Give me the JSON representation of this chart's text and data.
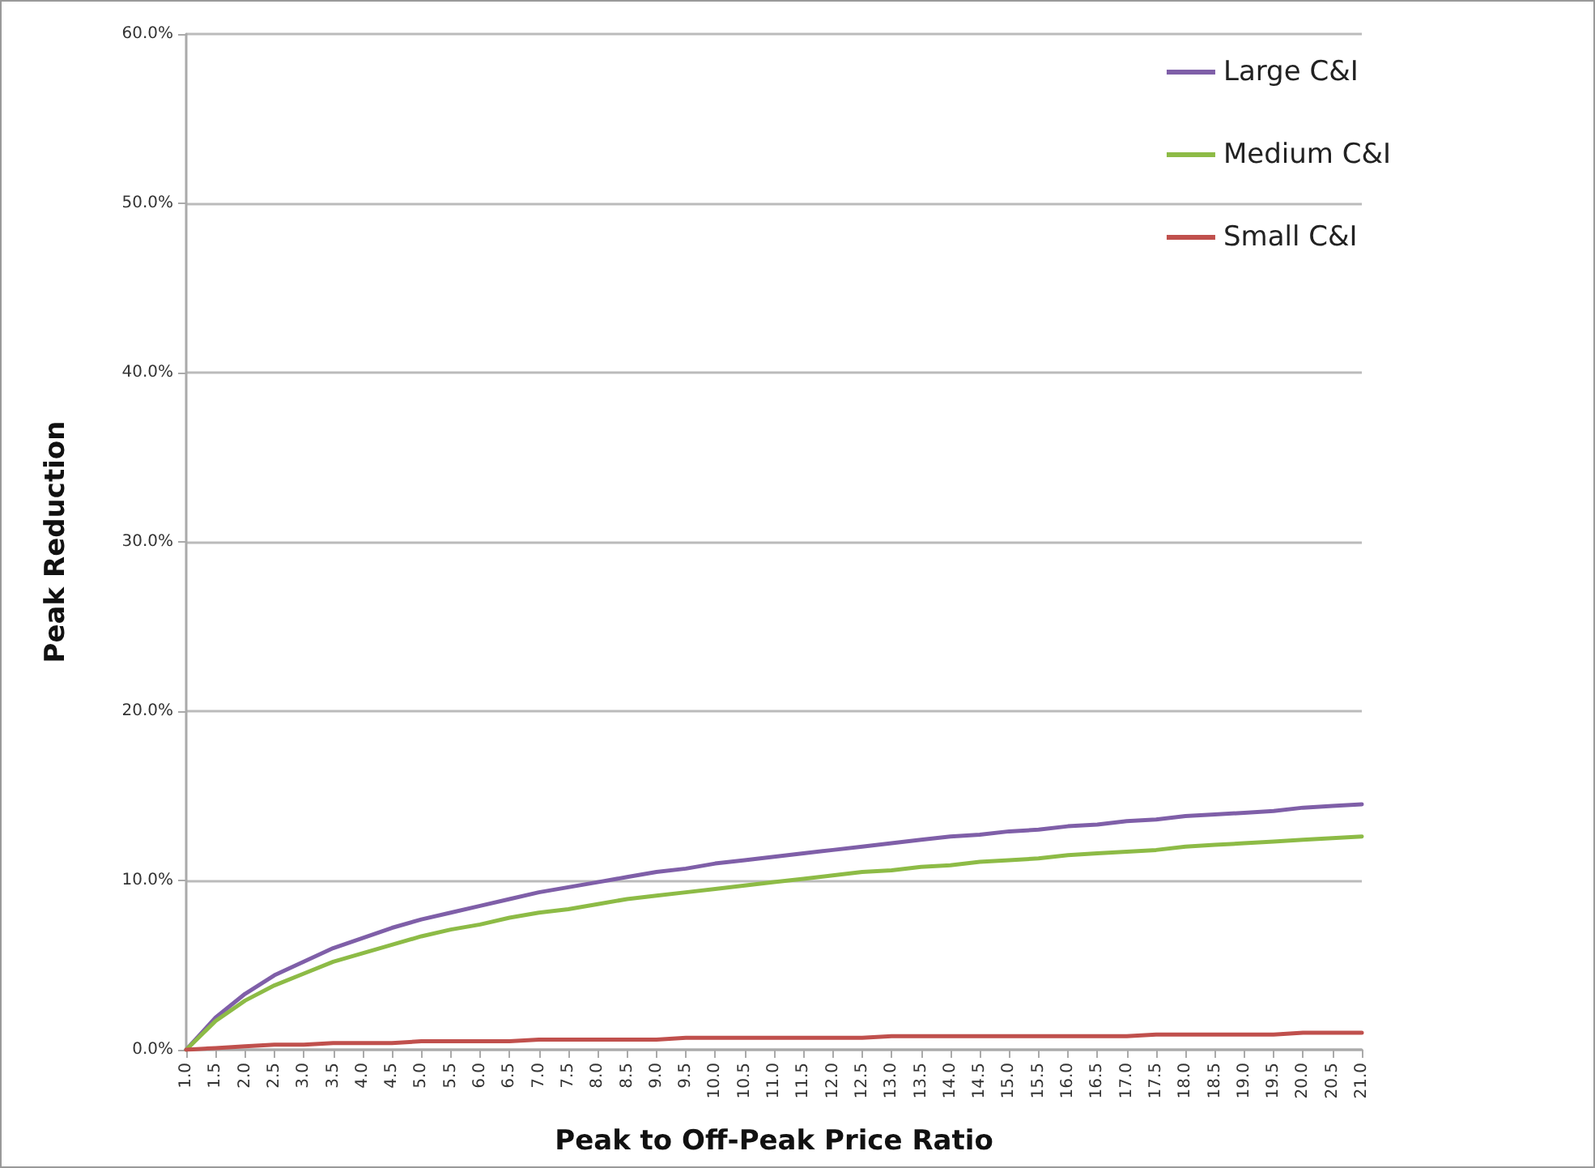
{
  "chart_data": {
    "type": "line",
    "xlabel": "Peak to Off-Peak Price Ratio",
    "ylabel": "Peak Reduction",
    "categories": [
      "1.0",
      "1.5",
      "2.0",
      "2.5",
      "3.0",
      "3.5",
      "4.0",
      "4.5",
      "5.0",
      "5.5",
      "6.0",
      "6.5",
      "7.0",
      "7.5",
      "8.0",
      "8.5",
      "9.0",
      "9.5",
      "10.0",
      "10.5",
      "11.0",
      "11.5",
      "12.0",
      "12.5",
      "13.0",
      "13.5",
      "14.0",
      "14.5",
      "15.0",
      "15.5",
      "16.0",
      "16.5",
      "17.0",
      "17.5",
      "18.0",
      "18.5",
      "19.0",
      "19.5",
      "20.0",
      "20.5",
      "21.0"
    ],
    "series": [
      {
        "name": "Large C&I",
        "color": "#7f5fa8",
        "values": [
          0,
          1.9,
          3.3,
          4.4,
          5.2,
          6.0,
          6.6,
          7.2,
          7.7,
          8.1,
          8.5,
          8.9,
          9.3,
          9.6,
          9.9,
          10.2,
          10.5,
          10.7,
          11.0,
          11.2,
          11.4,
          11.6,
          11.8,
          12.0,
          12.2,
          12.4,
          12.6,
          12.7,
          12.9,
          13.0,
          13.2,
          13.3,
          13.5,
          13.6,
          13.8,
          13.9,
          14.0,
          14.1,
          14.3,
          14.4,
          14.5
        ]
      },
      {
        "name": "Medium C&I",
        "color": "#8dbb46",
        "values": [
          0,
          1.7,
          2.9,
          3.8,
          4.5,
          5.2,
          5.7,
          6.2,
          6.7,
          7.1,
          7.4,
          7.8,
          8.1,
          8.3,
          8.6,
          8.9,
          9.1,
          9.3,
          9.5,
          9.7,
          9.9,
          10.1,
          10.3,
          10.5,
          10.6,
          10.8,
          10.9,
          11.1,
          11.2,
          11.3,
          11.5,
          11.6,
          11.7,
          11.8,
          12.0,
          12.1,
          12.2,
          12.3,
          12.4,
          12.5,
          12.6
        ]
      },
      {
        "name": "Small C&I",
        "color": "#c0504d",
        "values": [
          0,
          0.1,
          0.2,
          0.3,
          0.3,
          0.4,
          0.4,
          0.4,
          0.5,
          0.5,
          0.5,
          0.5,
          0.6,
          0.6,
          0.6,
          0.6,
          0.6,
          0.7,
          0.7,
          0.7,
          0.7,
          0.7,
          0.7,
          0.7,
          0.8,
          0.8,
          0.8,
          0.8,
          0.8,
          0.8,
          0.8,
          0.8,
          0.8,
          0.9,
          0.9,
          0.9,
          0.9,
          0.9,
          1.0,
          1.0,
          1.0
        ]
      }
    ],
    "ylim": [
      0,
      60
    ],
    "yticks": [
      {
        "value": 0,
        "label": "0.0%"
      },
      {
        "value": 10,
        "label": "10.0%"
      },
      {
        "value": 20,
        "label": "20.0%"
      },
      {
        "value": 30,
        "label": "30.0%"
      },
      {
        "value": 40,
        "label": "40.0%"
      },
      {
        "value": 50,
        "label": "50.0%"
      },
      {
        "value": 60,
        "label": "60.0%"
      }
    ],
    "grid": "y",
    "legend": "top right",
    "marker": "none",
    "line_style": "solid"
  }
}
